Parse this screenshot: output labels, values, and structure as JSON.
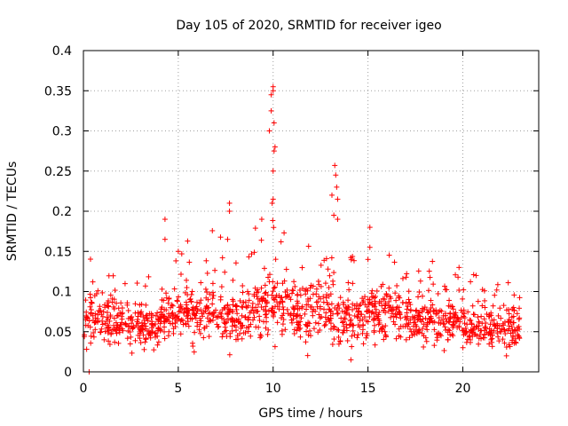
{
  "chart_data": {
    "type": "scatter",
    "title": "Day 105 of 2020, SRMTID for receiver igeo",
    "xlabel": "GPS time / hours",
    "ylabel": "SRMTID / TECUs",
    "xlim": [
      0,
      24
    ],
    "ylim": [
      0,
      0.4
    ],
    "xticks": [
      0,
      5,
      10,
      15,
      20
    ],
    "xtick_labels": [
      "0",
      "5",
      "10",
      "15",
      "20"
    ],
    "yticks": [
      0,
      0.05,
      0.1,
      0.15,
      0.2,
      0.25,
      0.3,
      0.35,
      0.4
    ],
    "ytick_labels": [
      "0",
      "0.05",
      "0.1",
      "0.15",
      "0.2",
      "0.25",
      "0.3",
      "0.35",
      "0.4"
    ],
    "grid": true,
    "marker": "plus",
    "color": "#ff0000",
    "x_range_of_data": [
      0,
      23
    ],
    "notable_peaks": [
      {
        "x": 0.3,
        "y": 0.0
      },
      {
        "x": 4.3,
        "y": 0.19
      },
      {
        "x": 4.3,
        "y": 0.165
      },
      {
        "x": 5.0,
        "y": 0.15
      },
      {
        "x": 7.7,
        "y": 0.21
      },
      {
        "x": 7.7,
        "y": 0.2
      },
      {
        "x": 7.6,
        "y": 0.165
      },
      {
        "x": 9.4,
        "y": 0.19
      },
      {
        "x": 9.8,
        "y": 0.3
      },
      {
        "x": 9.9,
        "y": 0.345
      },
      {
        "x": 9.9,
        "y": 0.325
      },
      {
        "x": 10.0,
        "y": 0.355
      },
      {
        "x": 10.0,
        "y": 0.35
      },
      {
        "x": 10.05,
        "y": 0.31
      },
      {
        "x": 10.05,
        "y": 0.275
      },
      {
        "x": 10.1,
        "y": 0.28
      },
      {
        "x": 10.0,
        "y": 0.25
      },
      {
        "x": 9.95,
        "y": 0.21
      },
      {
        "x": 10.0,
        "y": 0.215
      },
      {
        "x": 13.1,
        "y": 0.22
      },
      {
        "x": 13.25,
        "y": 0.257
      },
      {
        "x": 13.3,
        "y": 0.245
      },
      {
        "x": 13.35,
        "y": 0.23
      },
      {
        "x": 13.4,
        "y": 0.215
      },
      {
        "x": 13.2,
        "y": 0.195
      },
      {
        "x": 13.4,
        "y": 0.19
      },
      {
        "x": 15.1,
        "y": 0.18
      },
      {
        "x": 15.1,
        "y": 0.155
      },
      {
        "x": 15.0,
        "y": 0.14
      },
      {
        "x": 14.1,
        "y": 0.015
      },
      {
        "x": 19.8,
        "y": 0.13
      },
      {
        "x": 20.7,
        "y": 0.12
      },
      {
        "x": 22.3,
        "y": 0.02
      }
    ],
    "baseline_segments": [
      {
        "x0": 0,
        "x1": 2,
        "mean": 0.062,
        "spread": 0.028
      },
      {
        "x0": 2,
        "x1": 4,
        "mean": 0.058,
        "spread": 0.025
      },
      {
        "x0": 4,
        "x1": 7,
        "mean": 0.075,
        "spread": 0.03
      },
      {
        "x0": 7,
        "x1": 9,
        "mean": 0.072,
        "spread": 0.032
      },
      {
        "x0": 9,
        "x1": 11,
        "mean": 0.08,
        "spread": 0.035
      },
      {
        "x0": 11,
        "x1": 13,
        "mean": 0.078,
        "spread": 0.033
      },
      {
        "x0": 13,
        "x1": 15,
        "mean": 0.065,
        "spread": 0.03
      },
      {
        "x0": 15,
        "x1": 17,
        "mean": 0.075,
        "spread": 0.028
      },
      {
        "x0": 17,
        "x1": 20,
        "mean": 0.065,
        "spread": 0.025
      },
      {
        "x0": 20,
        "x1": 23,
        "mean": 0.055,
        "spread": 0.022
      }
    ],
    "point_count_approx": 1400
  }
}
